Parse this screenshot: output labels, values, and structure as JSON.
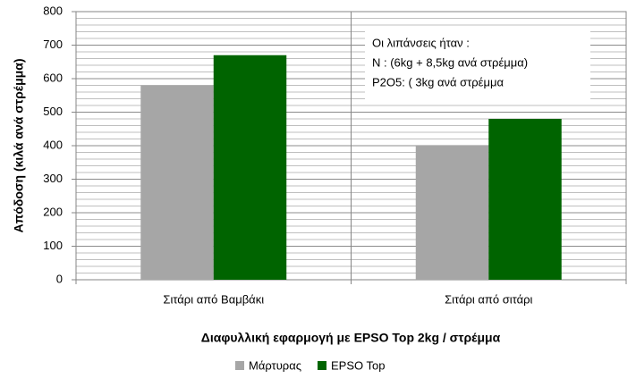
{
  "chart_data": {
    "type": "bar",
    "categories": [
      "Σιτάρι από Βαμβάκι",
      "Σιτάρι από σιτάρι"
    ],
    "series": [
      {
        "name": "Μάρτυρας",
        "color": "#a6a6a6",
        "values": [
          580,
          400
        ]
      },
      {
        "name": "EPSO Top",
        "color": "#006400",
        "values": [
          670,
          480
        ]
      }
    ],
    "ylim": [
      0,
      800
    ],
    "yticks": [
      0,
      100,
      200,
      300,
      400,
      500,
      600,
      700,
      800
    ],
    "grid": true,
    "minor_grid": true,
    "y_label": "Απόδοση (κιλά ανά στρέμμα)",
    "x_label": "Διαφυλλική εφαρμογή με EPSO Top 2kg / στρέμμα",
    "annotation": [
      "Οι λιπάνσεις ήταν :",
      "N  : (6kg + 8,5kg ανά στρέμμα)",
      "P2O5: ( 3kg ανά στρέμμα"
    ],
    "legend": "bottom"
  }
}
